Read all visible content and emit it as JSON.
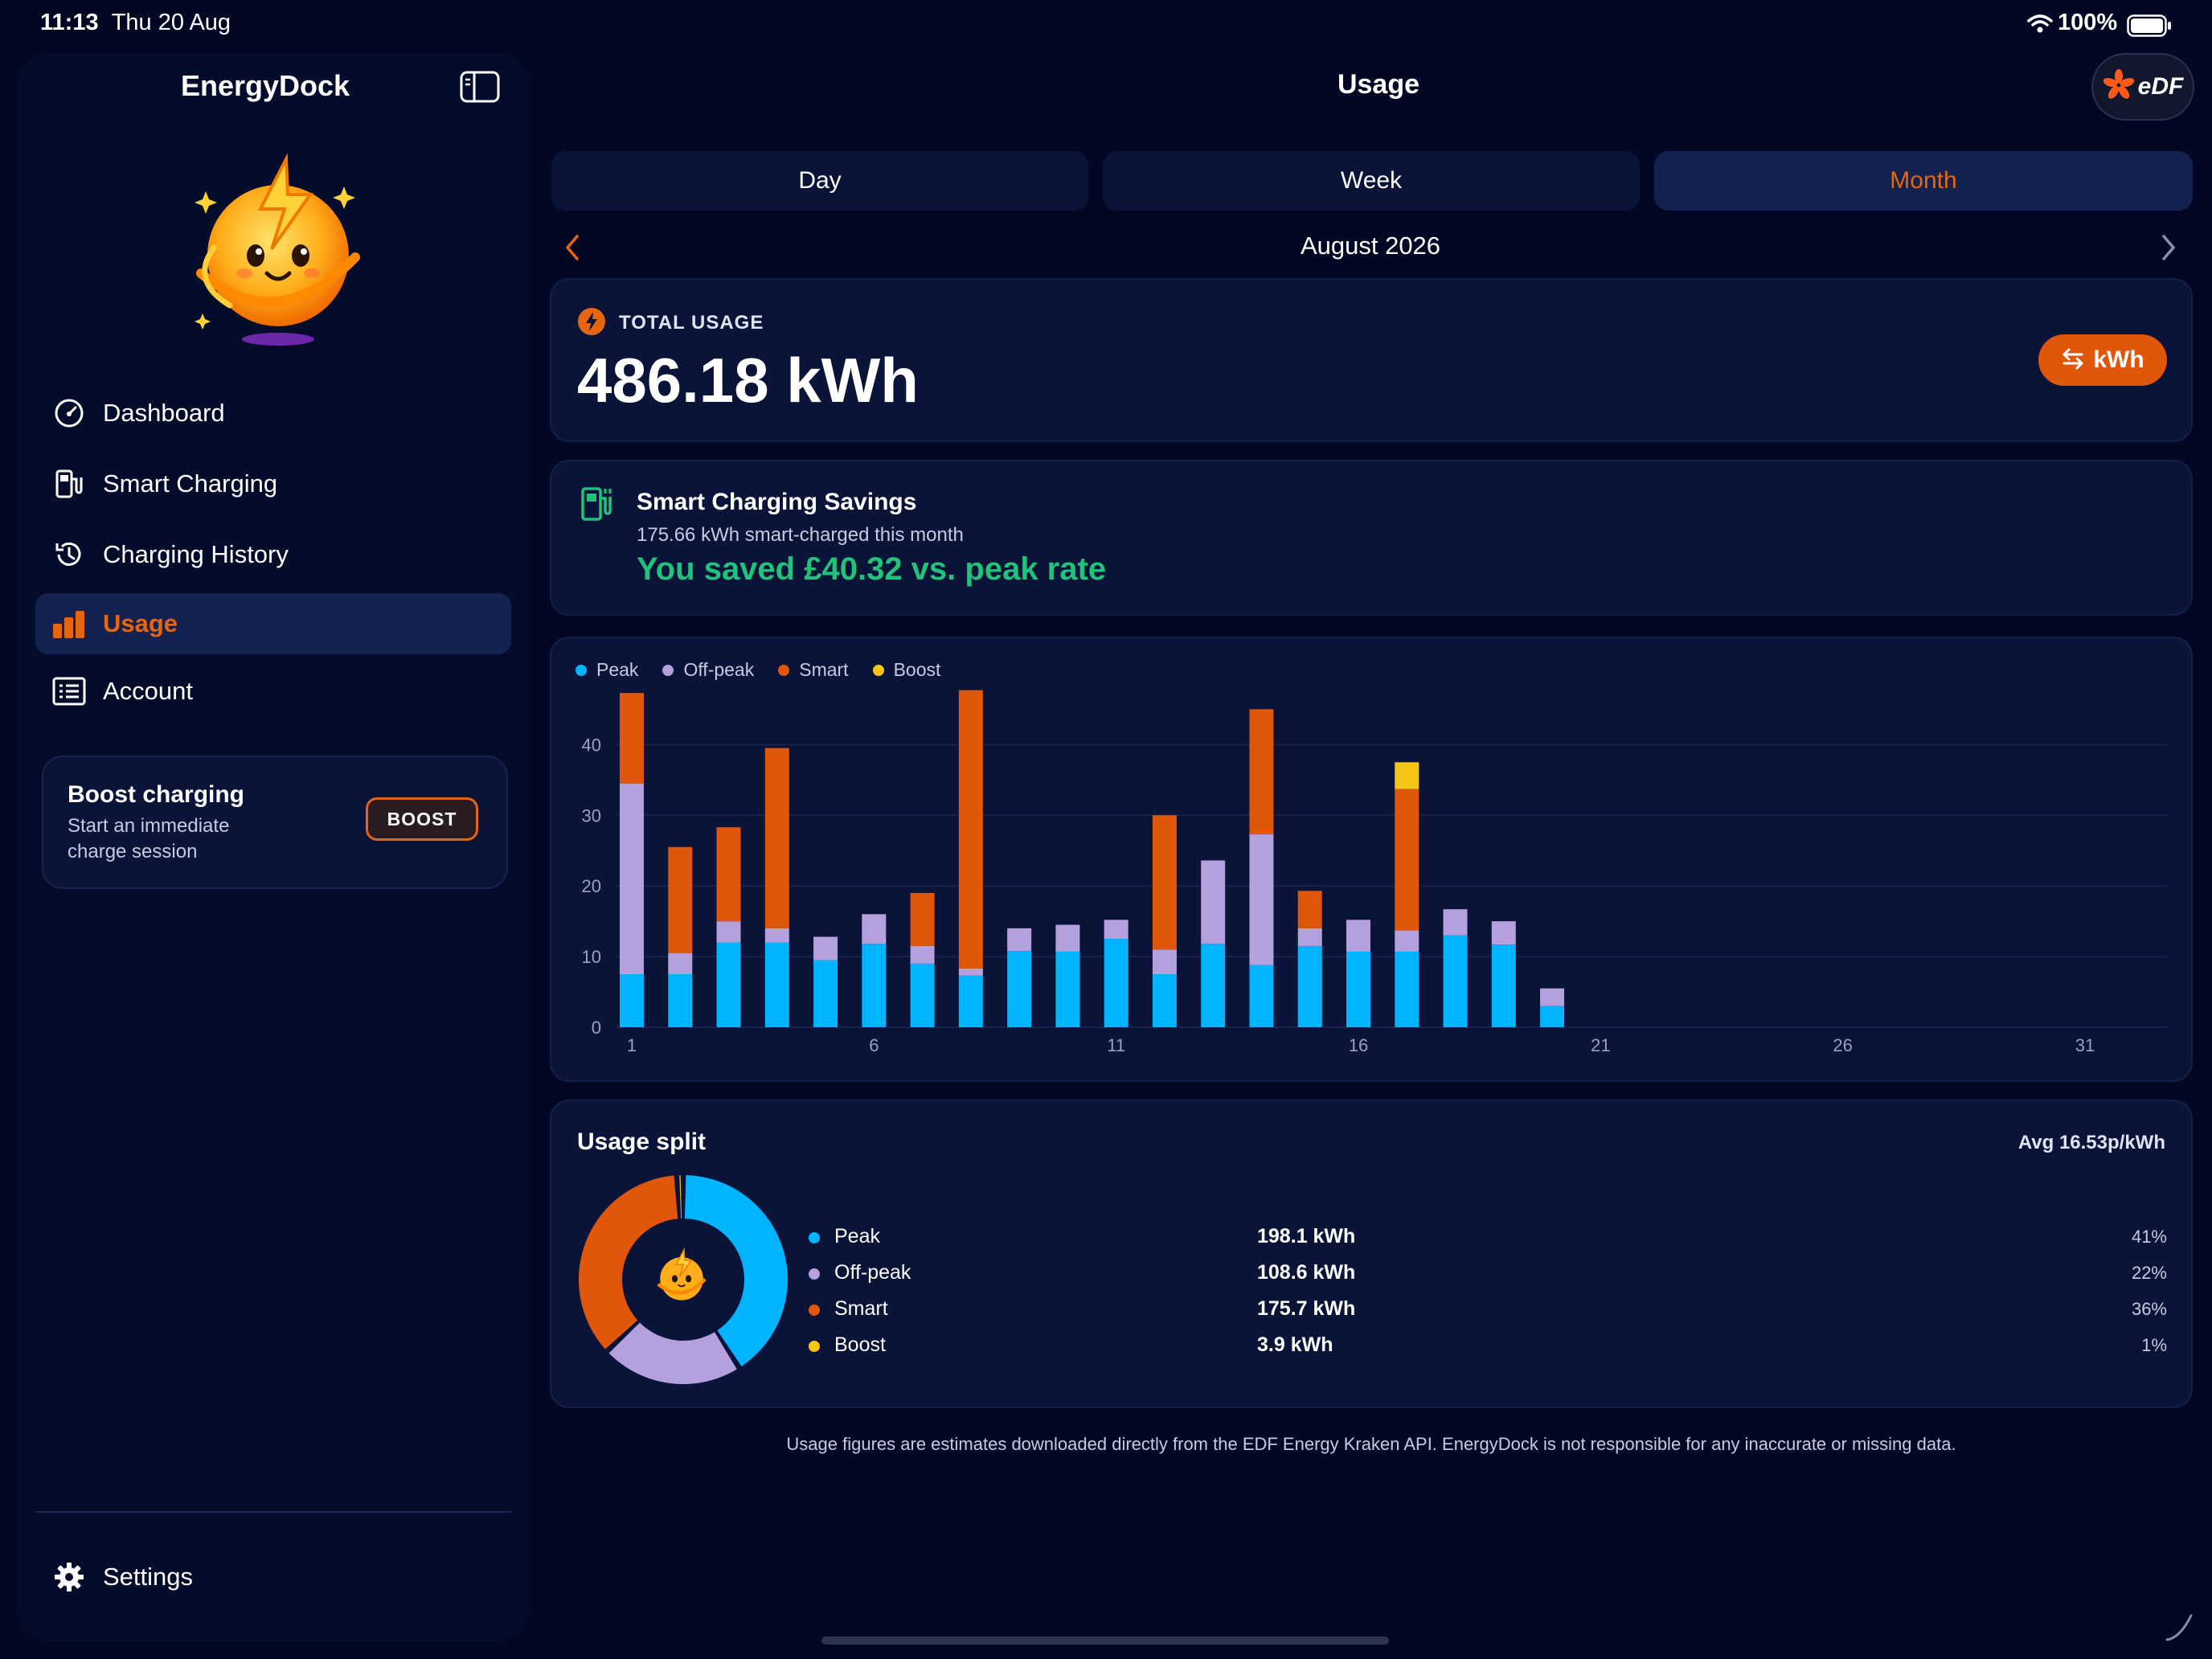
{
  "status_bar": {
    "time": "11:13",
    "date": "Thu 20 Aug",
    "battery": "100%"
  },
  "sidebar": {
    "app_name": "EnergyDock",
    "nav": [
      {
        "label": "Dashboard",
        "icon": "speedometer-icon"
      },
      {
        "label": "Smart Charging",
        "icon": "ev-charger-icon"
      },
      {
        "label": "Charging History",
        "icon": "history-icon"
      },
      {
        "label": "Usage",
        "icon": "bar-chart-icon",
        "active": true
      },
      {
        "label": "Account",
        "icon": "account-list-icon"
      }
    ],
    "boost": {
      "title": "Boost charging",
      "subtitle_line1": "Start an immediate",
      "subtitle_line2": "charge session",
      "button": "BOOST"
    },
    "settings_label": "Settings"
  },
  "header": {
    "title": "Usage",
    "provider_logo_text": "eDF"
  },
  "tabs": [
    {
      "label": "Day"
    },
    {
      "label": "Week"
    },
    {
      "label": "Month",
      "active": true
    }
  ],
  "period": {
    "label": "August 2026"
  },
  "total_usage": {
    "label": "TOTAL USAGE",
    "value": "486.18 kWh",
    "unit_toggle": "kWh"
  },
  "savings": {
    "title": "Smart Charging Savings",
    "subtitle": "175.66 kWh smart-charged this month",
    "saved": "You saved £40.32 vs. peak rate"
  },
  "colors": {
    "peak": "#00b4ff",
    "offpeak": "#b4a0dc",
    "smart": "#e0560a",
    "boost": "#f5c518",
    "accent": "#e8650f",
    "saved": "#21c27a"
  },
  "chart_data": {
    "type": "bar",
    "stacked": true,
    "legend": [
      "Peak",
      "Off-peak",
      "Smart",
      "Boost"
    ],
    "legend_position": "top-left",
    "x": [
      1,
      2,
      3,
      4,
      5,
      6,
      7,
      8,
      9,
      10,
      11,
      12,
      13,
      14,
      15,
      16,
      17,
      18,
      19,
      20,
      21,
      22,
      23,
      24,
      25,
      26,
      27,
      28,
      29,
      30,
      31
    ],
    "x_ticks": [
      1,
      6,
      11,
      16,
      21,
      26,
      31
    ],
    "y_ticks": [
      0,
      10,
      20,
      30,
      40
    ],
    "ylim": [
      0,
      48
    ],
    "grid": true,
    "series": [
      {
        "name": "Peak",
        "values": [
          7.5,
          7.5,
          12,
          12,
          9.5,
          11.8,
          9,
          7.3,
          10.8,
          10.7,
          12.5,
          7.5,
          11.8,
          8.8,
          11.5,
          10.7,
          10.7,
          13,
          11.7,
          3,
          0,
          0,
          0,
          0,
          0,
          0,
          0,
          0,
          0,
          0,
          0
        ]
      },
      {
        "name": "Off-peak",
        "values": [
          27,
          3,
          3,
          2,
          3.3,
          4.2,
          2.5,
          1,
          3.2,
          3.8,
          2.7,
          3.5,
          11.8,
          18.5,
          2.5,
          4.5,
          3,
          3.7,
          3.3,
          2.5,
          0,
          0,
          0,
          0,
          0,
          0,
          0,
          0,
          0,
          0,
          0
        ]
      },
      {
        "name": "Smart",
        "values": [
          12.8,
          15,
          13.3,
          25.5,
          0,
          0,
          7.5,
          39.4,
          0,
          0,
          0,
          19,
          0,
          17.7,
          5.3,
          0,
          20,
          0,
          0,
          0,
          0,
          0,
          0,
          0,
          0,
          0,
          0,
          0,
          0,
          0,
          0
        ]
      },
      {
        "name": "Boost",
        "values": [
          0,
          0,
          0,
          0,
          0,
          0,
          0,
          0,
          0,
          0,
          0,
          0,
          0,
          0,
          0,
          0,
          3.8,
          0,
          0,
          0,
          0,
          0,
          0,
          0,
          0,
          0,
          0,
          0,
          0,
          0,
          0
        ]
      }
    ]
  },
  "split": {
    "title": "Usage split",
    "avg": "Avg 16.53p/kWh",
    "rows": [
      {
        "name": "Peak",
        "value": "198.1 kWh",
        "pct": "41%",
        "share": 41
      },
      {
        "name": "Off-peak",
        "value": "108.6 kWh",
        "pct": "22%",
        "share": 22
      },
      {
        "name": "Smart",
        "value": "175.7 kWh",
        "pct": "36%",
        "share": 36
      },
      {
        "name": "Boost",
        "value": "3.9 kWh",
        "pct": "1%",
        "share": 1
      }
    ]
  },
  "footer_note": "Usage figures are estimates downloaded directly from the EDF Energy Kraken API. EnergyDock is not responsible for any inaccurate or missing data."
}
